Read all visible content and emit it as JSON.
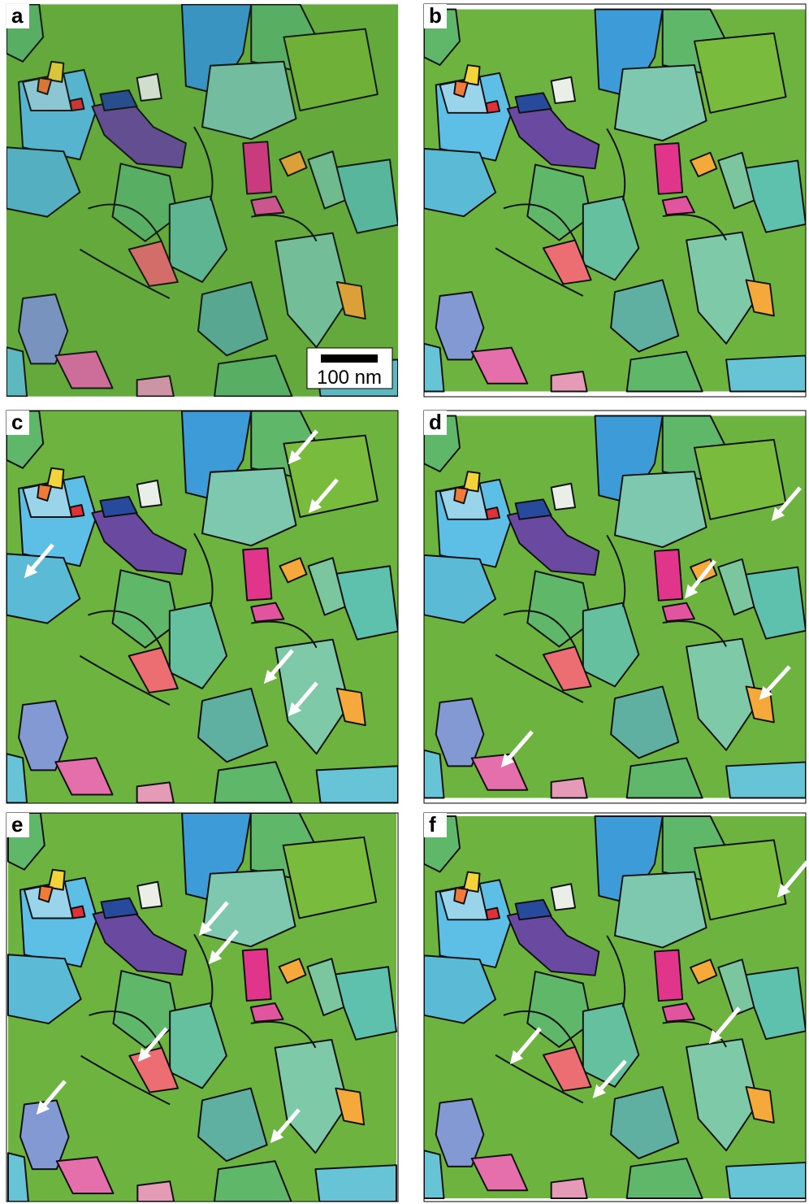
{
  "panels": [
    {
      "label": "a"
    },
    {
      "label": "b"
    },
    {
      "label": "c"
    },
    {
      "label": "d"
    },
    {
      "label": "e"
    },
    {
      "label": "f"
    }
  ],
  "scale_bar": {
    "label": "100 nm"
  }
}
